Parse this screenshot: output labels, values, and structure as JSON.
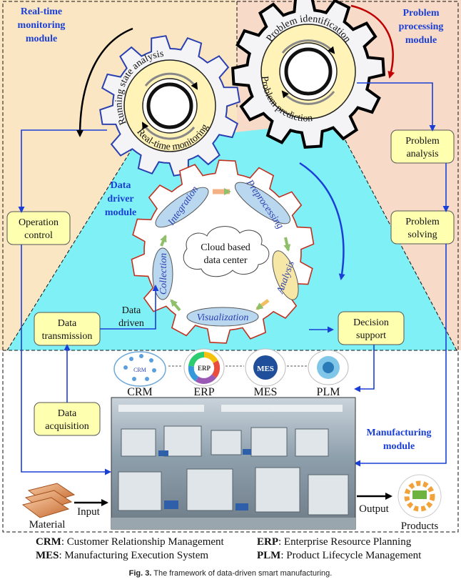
{
  "modules": {
    "realtime": "Real-time monitoring module",
    "problem": "Problem processing module",
    "data_driver": "Data driver module",
    "manufacturing": "Manufacturing module"
  },
  "gears": {
    "left_outer": "Running state analysis",
    "left_inner": "Real-time monitoring",
    "right_outer": "Problem identification",
    "right_inner": "Problem prediction"
  },
  "cycle": {
    "center": "Cloud based data center",
    "steps": [
      "Integration",
      "Preprocessing",
      "Analysis",
      "Visualization",
      "Collection"
    ]
  },
  "boxes": {
    "operation_control": "Operation control",
    "data_transmission": "Data transmission",
    "data_acquisition": "Data acquisition",
    "problem_analysis": "Problem analysis",
    "problem_solving": "Problem solving",
    "decision_support": "Decision support"
  },
  "edge_labels": {
    "data_driven": "Data driven",
    "input": "Input",
    "output": "Output"
  },
  "systems": [
    "CRM",
    "ERP",
    "MES",
    "PLM"
  ],
  "io": {
    "material": "Material",
    "products": "Products"
  },
  "legend": [
    {
      "abbr": "CRM",
      "text": ": Customer Relationship Management"
    },
    {
      "abbr": "ERP",
      "text": ": Enterprise Resource Planning"
    },
    {
      "abbr": "MES",
      "text": ": Manufacturing Execution System"
    },
    {
      "abbr": "PLM",
      "text": ": Product Lifecycle Management"
    }
  ],
  "caption": {
    "label": "Fig. 3.",
    "text": "The framework of data-driven smart manufacturing."
  }
}
